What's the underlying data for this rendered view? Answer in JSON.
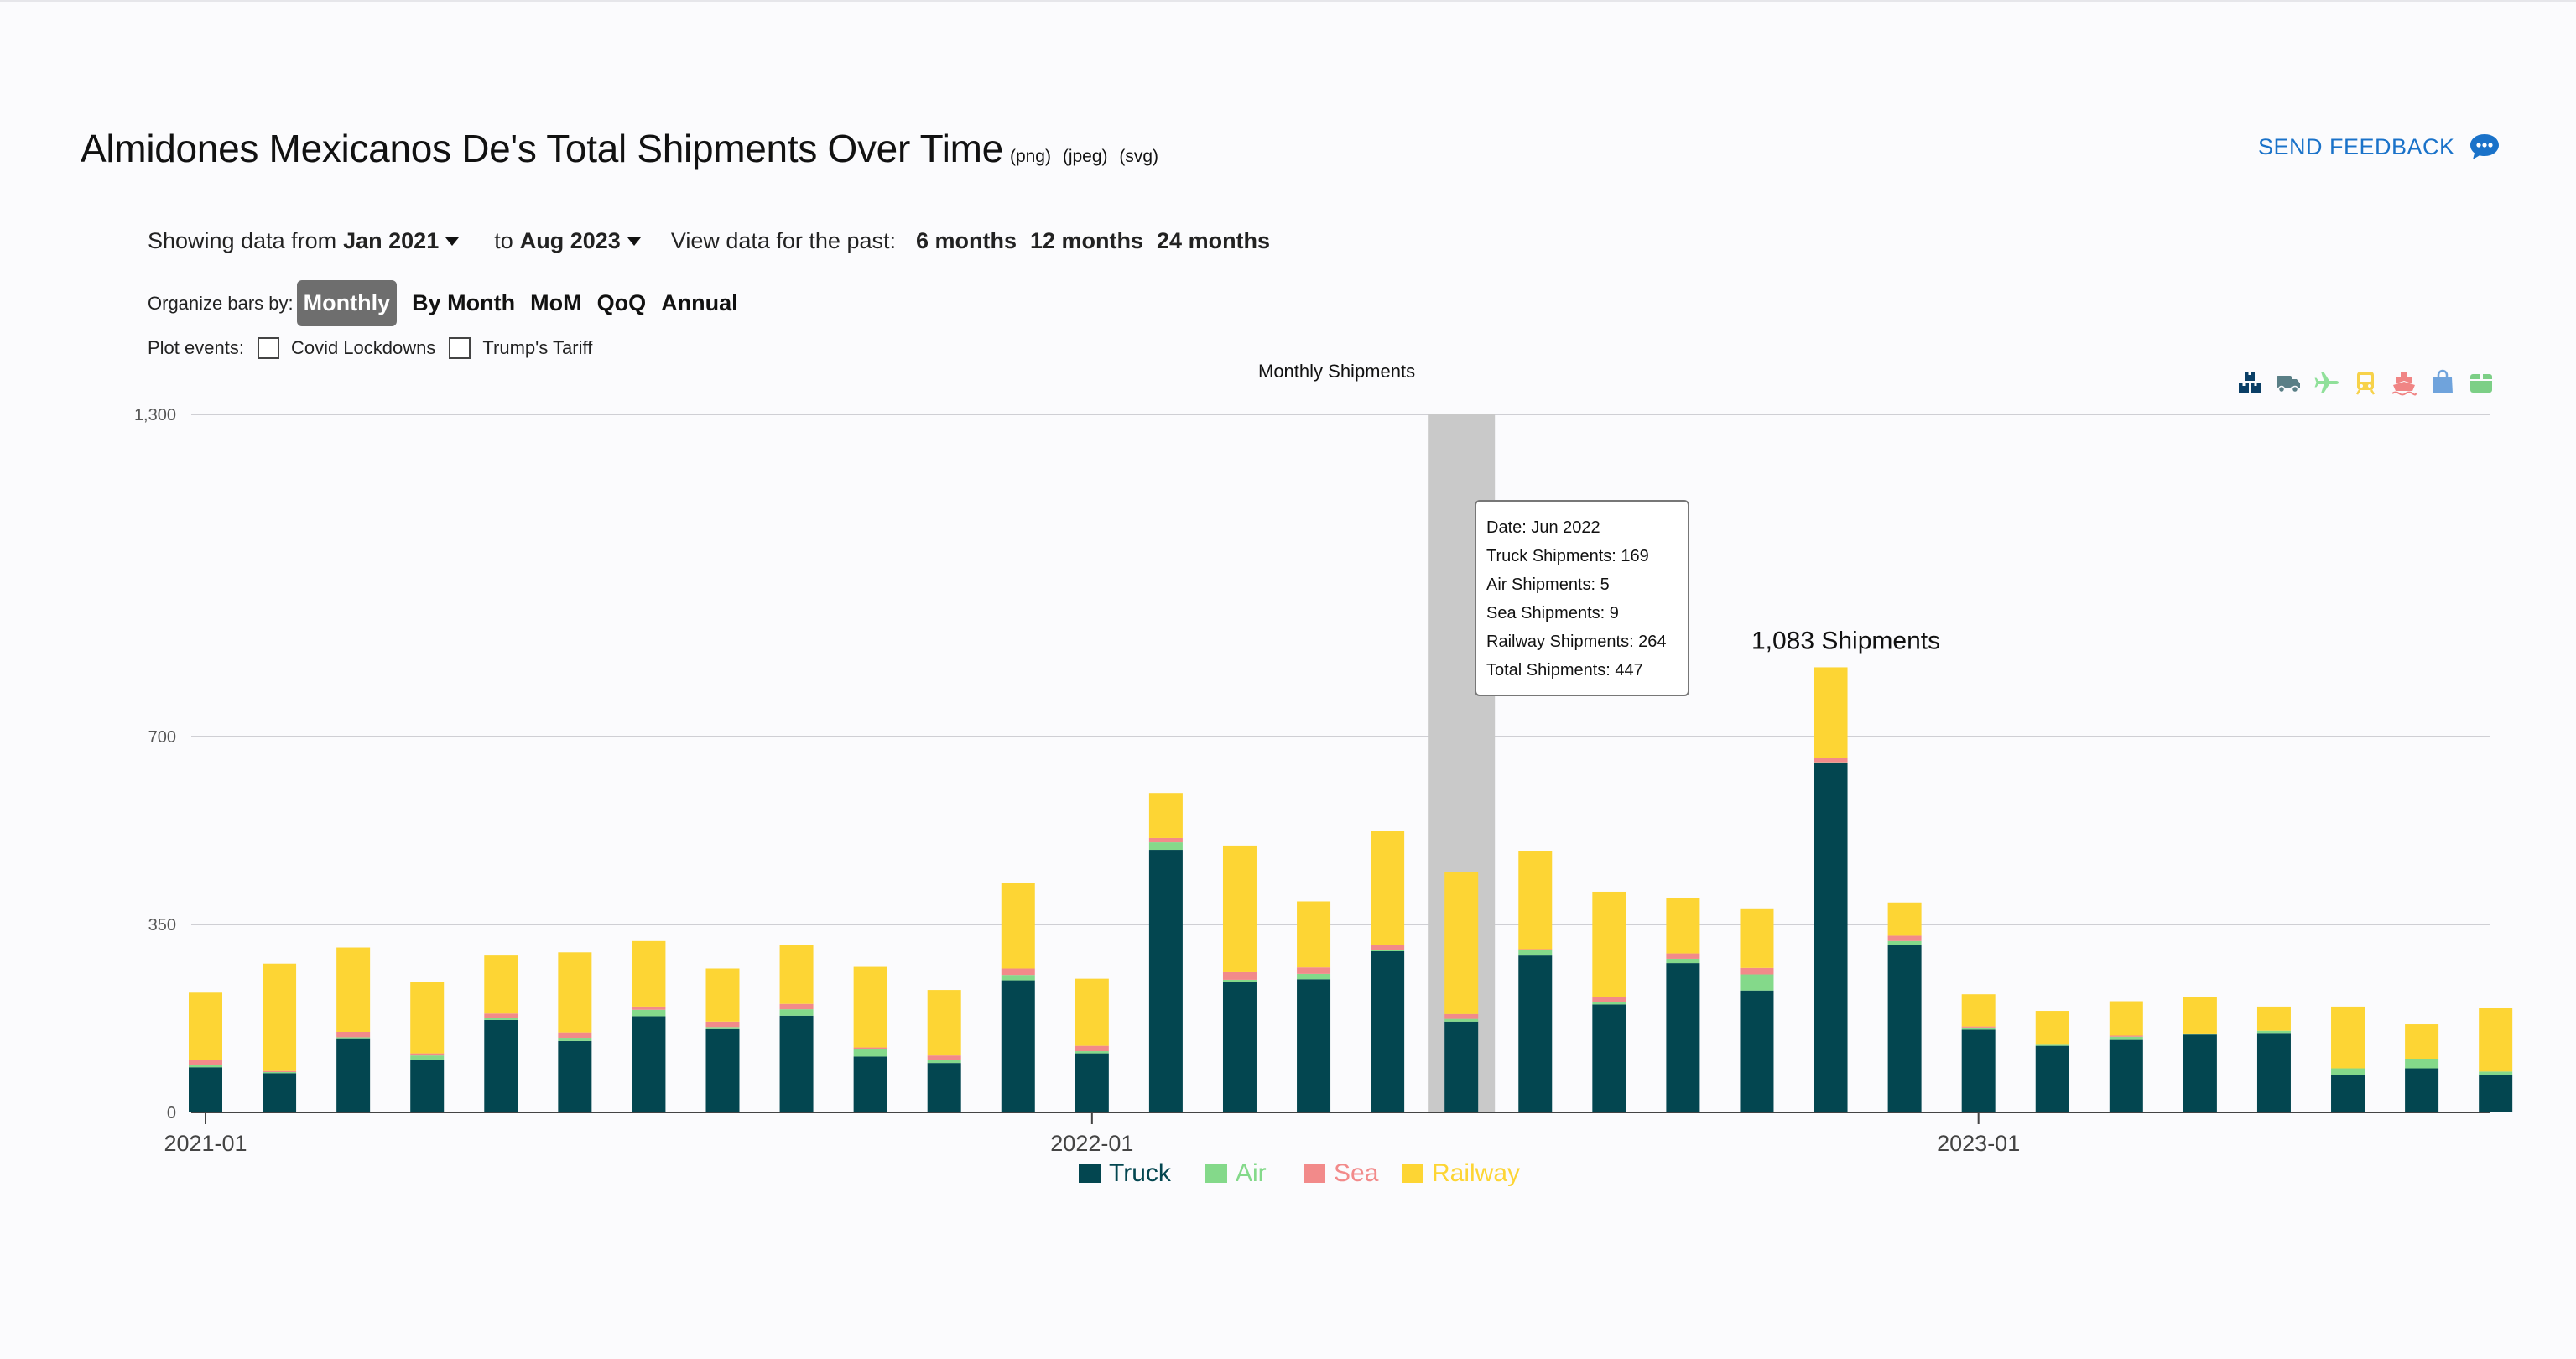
{
  "title": "Almidones Mexicanos De's Total Shipments Over Time",
  "exports": [
    "(png)",
    "(jpeg)",
    "(svg)"
  ],
  "feedback": "SEND FEEDBACK",
  "filters": {
    "showing_label": "Showing data from",
    "from_value": "Jan 2021",
    "to_label": "to",
    "to_value": "Aug 2023",
    "view_label": "View data for the past:",
    "ranges": [
      "6 months",
      "12 months",
      "24 months"
    ]
  },
  "organize": {
    "label": "Organize bars by:",
    "options": [
      "Monthly",
      "By Month",
      "MoM",
      "QoQ",
      "Annual"
    ],
    "active": "Monthly"
  },
  "events": {
    "label": "Plot events:",
    "options": [
      "Covid Lockdowns",
      "Trump's Tariff"
    ]
  },
  "mode_icons": [
    {
      "name": "all-shipments-icon",
      "color": "#0a3f66"
    },
    {
      "name": "truck-icon",
      "color": "#5a7f86"
    },
    {
      "name": "airplane-icon",
      "color": "#90e09a"
    },
    {
      "name": "train-icon",
      "color": "#f7d24a"
    },
    {
      "name": "ship-icon",
      "color": "#f08585"
    },
    {
      "name": "bag-icon",
      "color": "#6fa3dc"
    },
    {
      "name": "package-icon",
      "color": "#7ccf86"
    }
  ],
  "tooltip": {
    "lines": [
      "Date: Jun 2022",
      "Truck Shipments: 169",
      "Air Shipments: 5",
      "Sea Shipments: 9",
      "Railway Shipments: 264",
      "Total Shipments: 447"
    ]
  },
  "chart_data": {
    "type": "bar",
    "stacked": true,
    "title": "Monthly Shipments",
    "x_tick_labels": [
      "2021-01",
      "2022-01",
      "2023-01"
    ],
    "y_ticks": [
      0,
      350,
      700,
      1300
    ],
    "y_tick_labels": [
      "0",
      "350",
      "700",
      "1,300"
    ],
    "ylim": [
      0,
      1300
    ],
    "grid": true,
    "legend_position": "bottom",
    "annotation": "1,083 Shipments",
    "highlighted_category": "2022-06",
    "categories": [
      "2021-01",
      "2021-02",
      "2021-03",
      "2021-04",
      "2021-05",
      "2021-06",
      "2021-07",
      "2021-08",
      "2021-09",
      "2021-10",
      "2021-11",
      "2021-12",
      "2022-01",
      "2022-02",
      "2022-03",
      "2022-04",
      "2022-05",
      "2022-06",
      "2022-07",
      "2022-08",
      "2022-09",
      "2022-10",
      "2022-11",
      "2022-12",
      "2023-01",
      "2023-02",
      "2023-03",
      "2023-04",
      "2023-05",
      "2023-06",
      "2023-07",
      "2023-08"
    ],
    "series": [
      {
        "name": "Truck",
        "color": "#034650",
        "values": [
          84,
          73,
          138,
          98,
          172,
          133,
          179,
          155,
          180,
          104,
          92,
          246,
          110,
          489,
          243,
          248,
          300,
          169,
          292,
          201,
          278,
          227,
          650,
          311,
          154,
          124,
          135,
          145,
          148,
          70,
          82,
          70
        ]
      },
      {
        "name": "Air",
        "color": "#84d98a",
        "values": [
          4,
          2,
          2,
          8,
          4,
          6,
          12,
          4,
          12,
          14,
          6,
          10,
          4,
          14,
          4,
          10,
          2,
          5,
          10,
          4,
          8,
          30,
          2,
          8,
          4,
          2,
          6,
          2,
          4,
          12,
          18,
          6
        ]
      },
      {
        "name": "Sea",
        "color": "#f28a8a",
        "values": [
          10,
          2,
          10,
          4,
          8,
          10,
          6,
          10,
          10,
          3,
          8,
          12,
          10,
          8,
          14,
          12,
          10,
          9,
          2,
          10,
          10,
          12,
          8,
          10,
          2,
          0,
          2,
          0,
          0,
          0,
          0,
          0
        ]
      },
      {
        "name": "Railway",
        "color": "#fdd534",
        "values": [
          125,
          200,
          157,
          133,
          108,
          149,
          122,
          99,
          109,
          150,
          122,
          159,
          125,
          84,
          236,
          123,
          212,
          264,
          183,
          196,
          104,
          111,
          169,
          62,
          60,
          63,
          64,
          68,
          45,
          115,
          64,
          119
        ]
      }
    ]
  }
}
